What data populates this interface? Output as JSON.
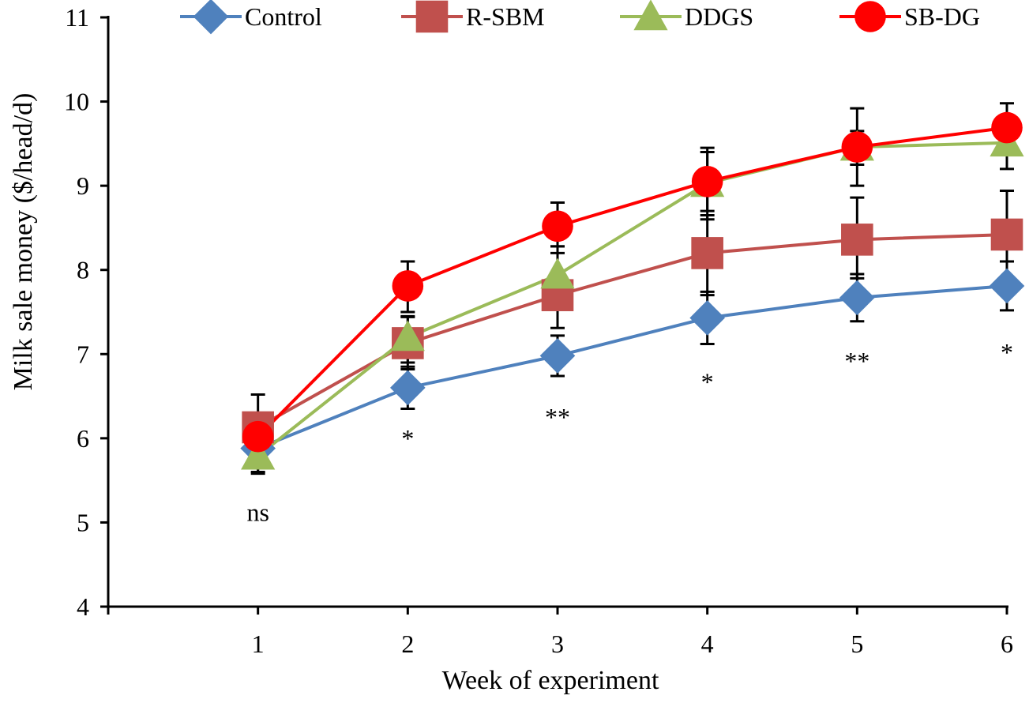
{
  "chart_data": {
    "type": "line",
    "title": "",
    "xlabel": "Week of experiment",
    "ylabel": "Milk sale money ($/head/d)",
    "x": [
      1,
      2,
      3,
      4,
      5,
      6
    ],
    "xlim": [
      0,
      6
    ],
    "ylim": [
      4,
      11
    ],
    "yticks": [
      4,
      5,
      6,
      7,
      8,
      9,
      10,
      11
    ],
    "legend_position": "top",
    "series": [
      {
        "name": "Control",
        "color": "#4F81BD",
        "marker": "diamond",
        "values": [
          5.88,
          6.6,
          6.98,
          7.43,
          7.67,
          7.81
        ],
        "err_low": [
          5.58,
          6.35,
          6.74,
          7.12,
          7.39,
          7.52
        ],
        "err_high": [
          6.18,
          6.85,
          7.22,
          7.74,
          7.95,
          8.1
        ]
      },
      {
        "name": "R-SBM",
        "color": "#C0504D",
        "marker": "square",
        "values": [
          6.13,
          7.13,
          7.7,
          8.2,
          8.36,
          8.42
        ],
        "err_low": [
          5.75,
          6.82,
          7.31,
          7.7,
          7.9,
          8.1
        ],
        "err_high": [
          6.52,
          7.44,
          8.28,
          8.65,
          8.86,
          8.94
        ]
      },
      {
        "name": "DDGS",
        "color": "#9BBB59",
        "marker": "triangle",
        "values": [
          5.79,
          7.2,
          7.94,
          9.03,
          9.46,
          9.51
        ],
        "err_low": [
          5.6,
          6.9,
          7.6,
          8.6,
          9.0,
          9.2
        ],
        "err_high": [
          6.0,
          7.45,
          8.28,
          9.45,
          9.92,
          9.84
        ]
      },
      {
        "name": "SB-DG",
        "color": "#FF0000",
        "marker": "circle",
        "values": [
          6.02,
          7.81,
          8.52,
          9.05,
          9.46,
          9.69
        ],
        "err_low": [
          5.75,
          7.5,
          8.2,
          8.7,
          9.25,
          9.4
        ],
        "err_high": [
          6.3,
          8.1,
          8.8,
          9.4,
          9.65,
          9.98
        ]
      }
    ],
    "significance": [
      {
        "x": 1,
        "label": "ns",
        "y": 5.12
      },
      {
        "x": 2,
        "label": "*",
        "y": 6.0
      },
      {
        "x": 3,
        "label": "**",
        "y": 6.25
      },
      {
        "x": 4,
        "label": "*",
        "y": 6.67
      },
      {
        "x": 5,
        "label": "**",
        "y": 6.92
      },
      {
        "x": 6,
        "label": "*",
        "y": 7.02
      }
    ]
  }
}
